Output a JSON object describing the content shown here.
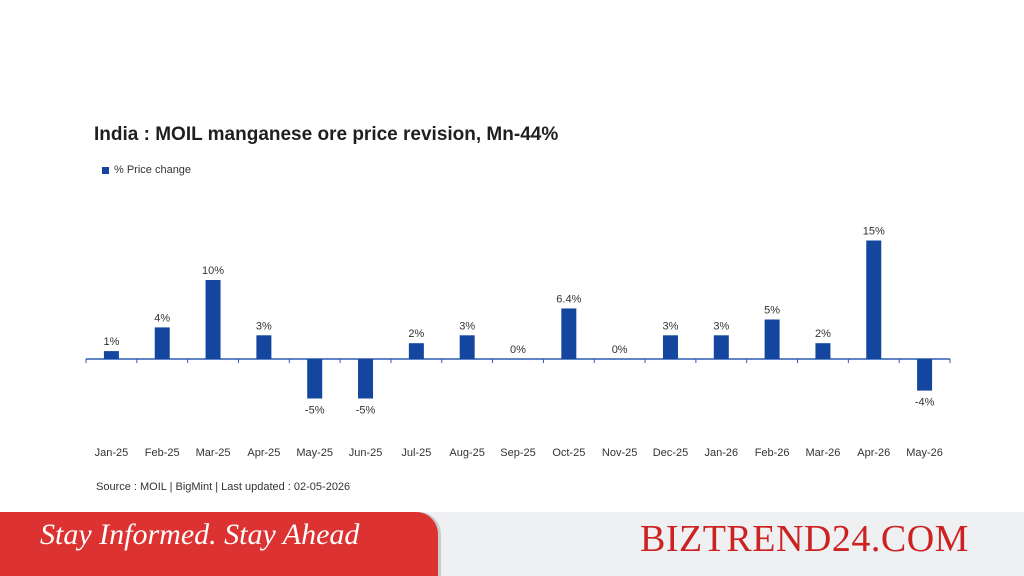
{
  "chart_data": {
    "type": "bar",
    "title": "India : MOIL manganese ore price revision, Mn-44%",
    "legend_position": "top-left",
    "grid": false,
    "series": [
      {
        "name": "% Price change",
        "color": "#1446a0",
        "values": [
          1,
          4,
          10,
          3,
          -5,
          -5,
          2,
          3,
          0,
          6.4,
          0,
          3,
          3,
          5,
          2,
          15,
          -4
        ],
        "labels": [
          "1%",
          "4%",
          "10%",
          "3%",
          "-5%",
          "-5%",
          "2%",
          "3%",
          "0%",
          "6.4%",
          "0%",
          "3%",
          "3%",
          "5%",
          "2%",
          "15%",
          "-4%"
        ]
      }
    ],
    "categories": [
      "Jan-25",
      "Feb-25",
      "Mar-25",
      "Apr-25",
      "May-25",
      "Jun-25",
      "Jul-25",
      "Aug-25",
      "Sep-25",
      "Oct-25",
      "Nov-25",
      "Dec-25",
      "Jan-26",
      "Feb-26",
      "Mar-26",
      "Apr-26",
      "May-26"
    ],
    "ylim": [
      -7,
      16
    ],
    "source": "Source : MOIL | BigMint | Last updated : 02-05-2026"
  },
  "footer": {
    "tagline": "Stay Informed. Stay Ahead",
    "brand": "BIZTREND24.COM"
  }
}
